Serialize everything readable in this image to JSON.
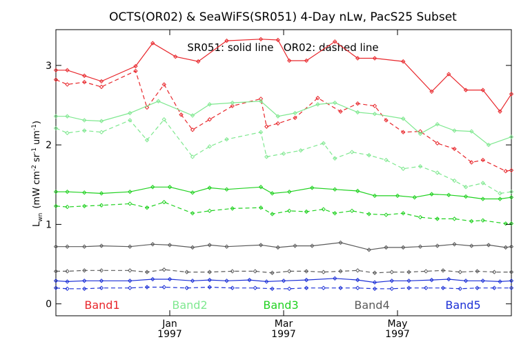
{
  "chart_data": {
    "type": "line",
    "title": "OCTS(OR02) & SeaWiFS(SR051) 4-Day nLw, PacS25 Subset",
    "annotation": "SR051: solid line   OR02: dashed line",
    "ylabel": "L_wn (mW cm^-2 sr^-1 um^-1)",
    "ylabel_parts": {
      "main": "L",
      "sub": "wn",
      "units_prefix": "(mW cm",
      "exp1": "-2",
      "sr": "sr",
      "exp2": "-1",
      "um": "um",
      "exp3": "-1",
      "close": ")"
    },
    "ylim": [
      -0.15,
      3.45
    ],
    "yticks": [
      0,
      1,
      2,
      3
    ],
    "ytick_labels": [
      "0",
      "1",
      "2",
      "3"
    ],
    "xlim": [
      0,
      40
    ],
    "xticks": [
      10,
      20,
      30
    ],
    "xtick_labels": [
      {
        "month": "Jan",
        "year": "1997"
      },
      {
        "month": "Mar",
        "year": "1997"
      },
      {
        "month": "May",
        "year": "1997"
      }
    ],
    "legend": [
      {
        "name": "Band1",
        "color": "#e8262b"
      },
      {
        "name": "Band2",
        "color": "#7ee88f"
      },
      {
        "name": "Band3",
        "color": "#1fd11f"
      },
      {
        "name": "Band4",
        "color": "#5a5a5a"
      },
      {
        "name": "Band5",
        "color": "#1b2fd6"
      }
    ],
    "series": [
      {
        "band": "Band1",
        "sensor": "SR051",
        "style": "solid",
        "color": "#e8262b",
        "x": [
          0,
          1,
          2.5,
          4,
          7,
          8.5,
          10.5,
          12.5,
          15,
          18,
          19.5,
          20.5,
          22,
          24.5,
          26.5,
          28,
          30.5,
          33,
          34.5,
          36,
          37.5,
          39,
          40
        ],
        "y": [
          2.94,
          2.94,
          2.87,
          2.8,
          2.99,
          3.28,
          3.11,
          3.05,
          3.31,
          3.33,
          3.32,
          3.06,
          3.06,
          3.3,
          3.09,
          3.09,
          3.05,
          2.67,
          2.89,
          2.69,
          2.69,
          2.42,
          2.64
        ]
      },
      {
        "band": "Band1",
        "sensor": "OR02",
        "style": "dashed",
        "color": "#e8262b",
        "x": [
          0,
          1,
          2.5,
          4,
          7,
          8,
          9.5,
          11,
          12,
          13.5,
          15.5,
          18,
          18.5,
          19.5,
          21,
          23,
          25,
          26.5,
          28,
          29,
          30.5,
          32,
          33.5,
          35,
          36.5,
          37.5,
          39.5,
          40
        ],
        "y": [
          2.82,
          2.76,
          2.79,
          2.73,
          2.93,
          2.47,
          2.76,
          2.38,
          2.19,
          2.32,
          2.49,
          2.58,
          2.23,
          2.27,
          2.34,
          2.59,
          2.42,
          2.52,
          2.49,
          2.31,
          2.16,
          2.17,
          2.02,
          1.95,
          1.78,
          1.81,
          1.67,
          1.68
        ]
      },
      {
        "band": "Band2",
        "sensor": "SR051",
        "style": "solid",
        "color": "#7ee88f",
        "x": [
          0,
          1,
          2.5,
          4,
          6.5,
          9,
          12,
          13.5,
          15.5,
          18,
          19.5,
          21,
          23,
          24.5,
          26.5,
          28,
          30.5,
          32,
          33.5,
          35,
          36.5,
          38,
          40
        ],
        "y": [
          2.36,
          2.36,
          2.31,
          2.3,
          2.4,
          2.55,
          2.37,
          2.51,
          2.53,
          2.55,
          2.36,
          2.4,
          2.51,
          2.53,
          2.41,
          2.39,
          2.33,
          2.14,
          2.26,
          2.18,
          2.17,
          2.0,
          2.1
        ]
      },
      {
        "band": "Band2",
        "sensor": "OR02",
        "style": "dashed",
        "color": "#7ee88f",
        "x": [
          0,
          1,
          2.5,
          4,
          6.5,
          8,
          9.5,
          12,
          13.5,
          15,
          18,
          18.5,
          20,
          21.5,
          23.5,
          24.5,
          26,
          27.5,
          29,
          30.5,
          32,
          33.5,
          35,
          36,
          37.5,
          39,
          40
        ],
        "y": [
          2.21,
          2.15,
          2.18,
          2.16,
          2.31,
          2.06,
          2.32,
          1.85,
          1.98,
          2.07,
          2.16,
          1.85,
          1.89,
          1.93,
          2.02,
          1.83,
          1.91,
          1.87,
          1.81,
          1.7,
          1.73,
          1.65,
          1.55,
          1.47,
          1.52,
          1.39,
          1.41
        ]
      },
      {
        "band": "Band3",
        "sensor": "SR051",
        "style": "solid",
        "color": "#1fd11f",
        "x": [
          0,
          1,
          2.5,
          4,
          6.5,
          8.5,
          10,
          12,
          13.5,
          15,
          18,
          19,
          20.5,
          22.5,
          24.5,
          26.5,
          28,
          30,
          31.5,
          33,
          34.5,
          36,
          37.5,
          39,
          40
        ],
        "y": [
          1.41,
          1.41,
          1.4,
          1.39,
          1.41,
          1.47,
          1.47,
          1.4,
          1.46,
          1.44,
          1.47,
          1.39,
          1.41,
          1.46,
          1.44,
          1.42,
          1.36,
          1.36,
          1.34,
          1.38,
          1.37,
          1.35,
          1.32,
          1.32,
          1.34
        ]
      },
      {
        "band": "Band3",
        "sensor": "OR02",
        "style": "dashed",
        "color": "#1fd11f",
        "x": [
          0,
          1,
          2.5,
          4,
          6.5,
          8,
          9.5,
          12,
          13.5,
          15.5,
          18,
          19,
          20.5,
          22,
          23.5,
          24.5,
          26,
          27.5,
          29,
          30.5,
          32,
          33.5,
          35,
          36.5,
          37.5,
          39.5,
          40
        ],
        "y": [
          1.23,
          1.22,
          1.23,
          1.24,
          1.26,
          1.21,
          1.28,
          1.14,
          1.17,
          1.2,
          1.21,
          1.13,
          1.17,
          1.16,
          1.19,
          1.14,
          1.17,
          1.13,
          1.12,
          1.14,
          1.09,
          1.07,
          1.07,
          1.04,
          1.05,
          1.01,
          1.01
        ]
      },
      {
        "band": "Band4",
        "sensor": "SR051",
        "style": "solid",
        "color": "#5a5a5a",
        "x": [
          0,
          1,
          2.5,
          4,
          6.5,
          8.5,
          10,
          12,
          13.5,
          15,
          18,
          19.5,
          21,
          22.5,
          25,
          27.5,
          29,
          30.5,
          32,
          33.5,
          35,
          36.5,
          38,
          39.5,
          40
        ],
        "y": [
          0.72,
          0.72,
          0.72,
          0.73,
          0.72,
          0.75,
          0.74,
          0.71,
          0.74,
          0.72,
          0.74,
          0.71,
          0.73,
          0.73,
          0.77,
          0.68,
          0.71,
          0.71,
          0.72,
          0.73,
          0.75,
          0.73,
          0.74,
          0.71,
          0.72
        ]
      },
      {
        "band": "Band4",
        "sensor": "OR02",
        "style": "dashed",
        "color": "#5a5a5a",
        "x": [
          0,
          1,
          2.5,
          4,
          6.5,
          8,
          9.5,
          11.5,
          13.5,
          15.5,
          17.5,
          19,
          20.5,
          22,
          23.5,
          25,
          26.5,
          28,
          29.5,
          31,
          32.5,
          34,
          35.5,
          37,
          38.5,
          40
        ],
        "y": [
          0.41,
          0.41,
          0.42,
          0.42,
          0.42,
          0.4,
          0.43,
          0.4,
          0.4,
          0.41,
          0.41,
          0.39,
          0.41,
          0.41,
          0.4,
          0.41,
          0.42,
          0.39,
          0.4,
          0.4,
          0.41,
          0.42,
          0.4,
          0.41,
          0.4,
          0.4
        ]
      },
      {
        "band": "Band5",
        "sensor": "SR051",
        "style": "solid",
        "color": "#1b2fd6",
        "x": [
          0,
          1,
          2.5,
          4,
          6.5,
          8.5,
          10,
          12,
          13.5,
          15,
          17,
          18.5,
          20,
          22,
          24.5,
          26.5,
          28,
          29.5,
          31,
          33,
          34.5,
          36,
          37.5,
          39,
          40
        ],
        "y": [
          0.29,
          0.28,
          0.29,
          0.29,
          0.29,
          0.31,
          0.31,
          0.29,
          0.3,
          0.29,
          0.3,
          0.28,
          0.29,
          0.3,
          0.32,
          0.3,
          0.27,
          0.29,
          0.29,
          0.3,
          0.31,
          0.29,
          0.29,
          0.28,
          0.29
        ]
      },
      {
        "band": "Band5",
        "sensor": "OR02",
        "style": "dashed",
        "color": "#1b2fd6",
        "x": [
          0,
          1,
          2.5,
          4,
          6.5,
          8,
          9.5,
          11.5,
          13.5,
          15.5,
          17.5,
          19,
          20.5,
          22,
          23.5,
          25,
          26.5,
          28,
          29.5,
          31,
          32.5,
          34,
          35.5,
          37,
          38.5,
          40
        ],
        "y": [
          0.2,
          0.19,
          0.19,
          0.2,
          0.2,
          0.21,
          0.21,
          0.2,
          0.21,
          0.2,
          0.2,
          0.19,
          0.19,
          0.2,
          0.2,
          0.2,
          0.2,
          0.19,
          0.19,
          0.2,
          0.2,
          0.2,
          0.19,
          0.2,
          0.2,
          0.2
        ]
      }
    ]
  }
}
